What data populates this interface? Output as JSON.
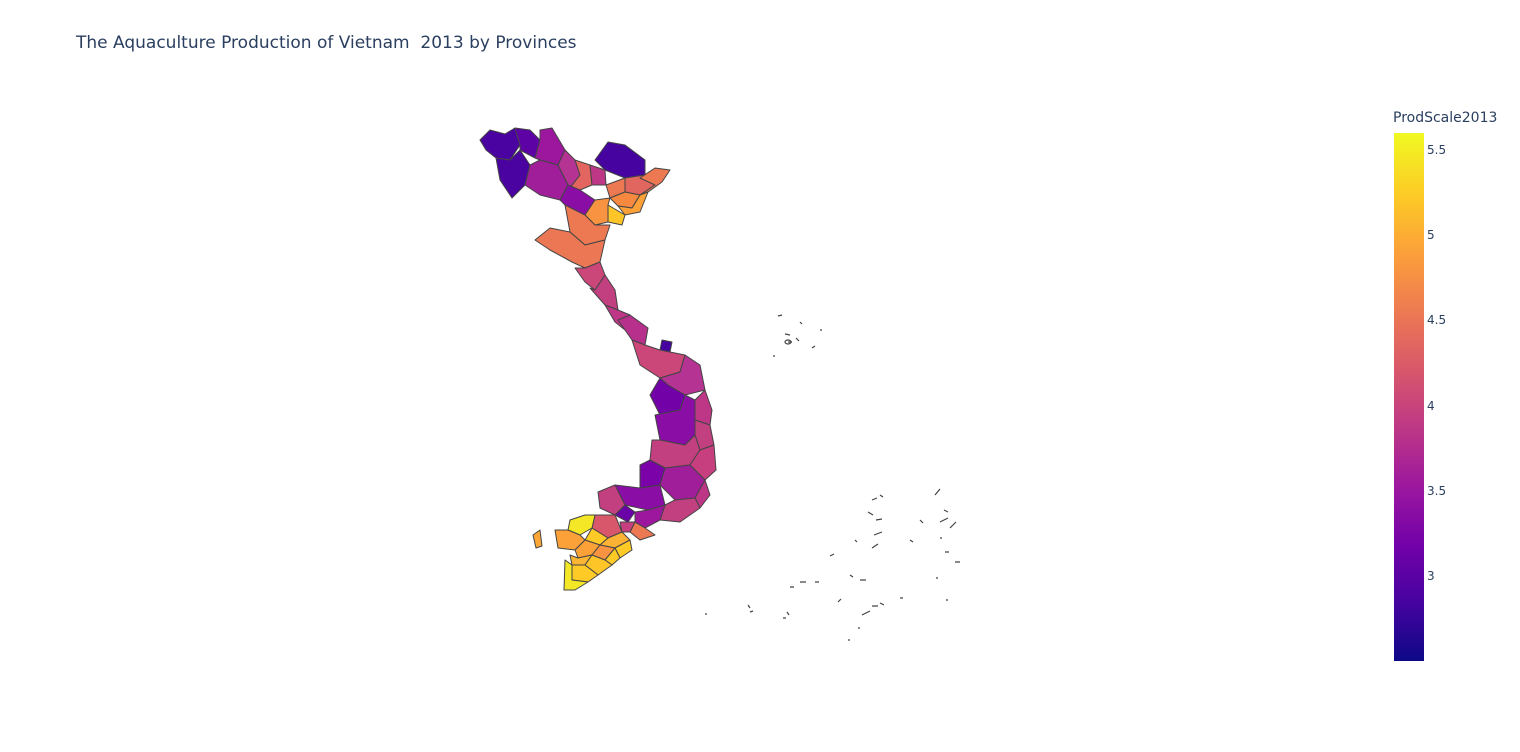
{
  "title": "The Aquaculture Production of Vietnam  2013 by Provinces",
  "chart_data": {
    "type": "choropleth",
    "region": "Vietnam provinces",
    "colorscale": "Plasma",
    "colorbar": {
      "title": "ProdScale2013",
      "range": [
        2.5,
        5.6
      ],
      "ticks": [
        "3",
        "3.5",
        "4",
        "4.5",
        "5",
        "5.5"
      ],
      "tick_values": [
        3,
        3.5,
        4,
        4.5,
        5,
        5.5
      ]
    },
    "colors": {
      "border": "#444444",
      "scale": [
        "#0d0887",
        "#46039f",
        "#7201a8",
        "#9c179e",
        "#bd3786",
        "#d8576b",
        "#ed7953",
        "#fb9f3a",
        "#fdca26",
        "#f0f921"
      ]
    }
  }
}
